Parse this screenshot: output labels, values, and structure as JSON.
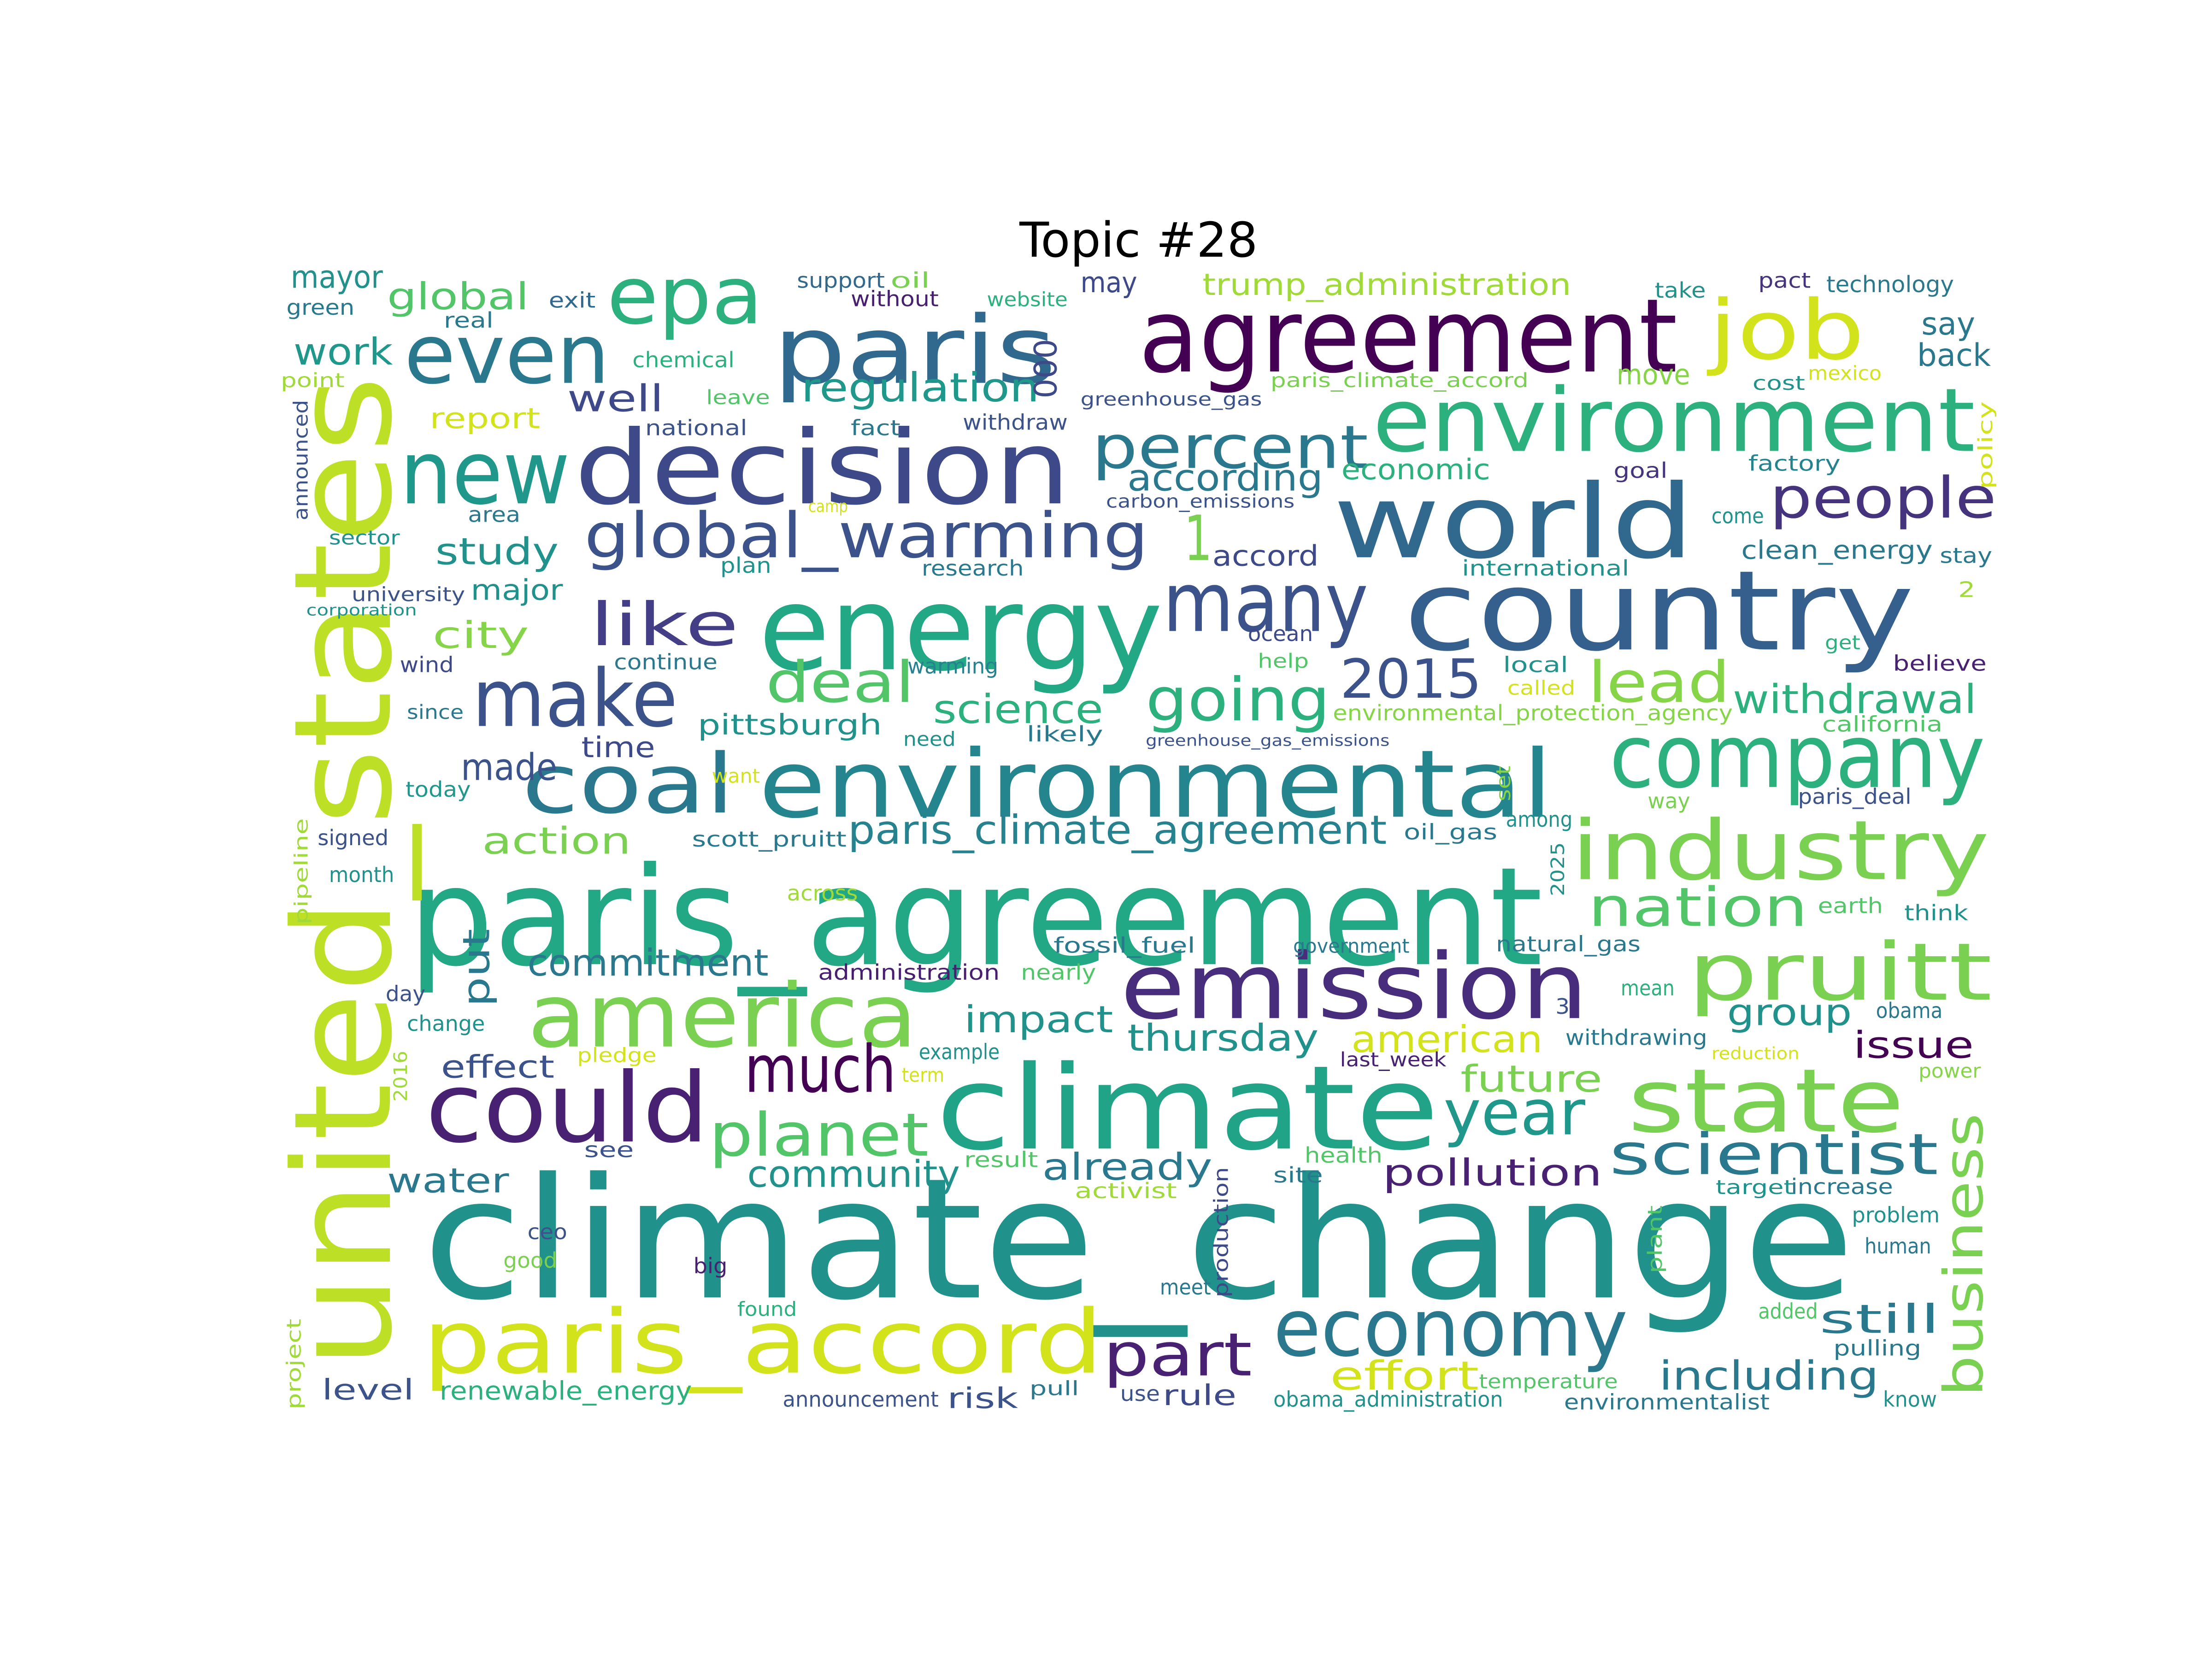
{
  "title": "Topic #28",
  "words": [
    {
      "text": "climate_change",
      "color": "#21918c"
    },
    {
      "text": "paris_agreement",
      "color": "#22a884"
    },
    {
      "text": "united_states",
      "color": "#bddf26"
    },
    {
      "text": "climate",
      "color": "#20a386"
    },
    {
      "text": "country",
      "color": "#355f8d"
    },
    {
      "text": "energy",
      "color": "#22a884"
    },
    {
      "text": "agreement",
      "color": "#440154"
    },
    {
      "text": "world",
      "color": "#31688e"
    },
    {
      "text": "environmental",
      "color": "#25858e"
    },
    {
      "text": "decision",
      "color": "#3e4989"
    },
    {
      "text": "paris",
      "color": "#31688e"
    },
    {
      "text": "emission",
      "color": "#472d7b"
    },
    {
      "text": "environment",
      "color": "#2cb17e"
    },
    {
      "text": "paris_accord",
      "color": "#d2e21b"
    },
    {
      "text": "could",
      "color": "#482173"
    },
    {
      "text": "america",
      "color": "#7ad151"
    },
    {
      "text": "state",
      "color": "#7ad151"
    },
    {
      "text": "company",
      "color": "#2cb17e"
    },
    {
      "text": "industry",
      "color": "#7ad151"
    },
    {
      "text": "economy",
      "color": "#2a788e"
    },
    {
      "text": "pruitt",
      "color": "#7ad151"
    },
    {
      "text": "job",
      "color": "#d2e21b"
    },
    {
      "text": "new",
      "color": "#1f988b"
    },
    {
      "text": "even",
      "color": "#2a788e"
    },
    {
      "text": "epa",
      "color": "#2cb17e"
    },
    {
      "text": "coal",
      "color": "#2a788e"
    },
    {
      "text": "make",
      "color": "#3b528b"
    },
    {
      "text": "many",
      "color": "#3b528b"
    },
    {
      "text": "global_warming",
      "color": "#3b528b"
    },
    {
      "text": "percent",
      "color": "#2a788e"
    },
    {
      "text": "people",
      "color": "#46337e"
    },
    {
      "text": "scientist",
      "color": "#2a788e"
    },
    {
      "text": "business",
      "color": "#7ad151"
    },
    {
      "text": "going",
      "color": "#2cb17e"
    },
    {
      "text": "deal",
      "color": "#52c569"
    },
    {
      "text": "like",
      "color": "#433e85"
    },
    {
      "text": "much",
      "color": "#440154"
    },
    {
      "text": "planet",
      "color": "#52c569"
    },
    {
      "text": "year",
      "color": "#1f988b"
    },
    {
      "text": "part",
      "color": "#482173"
    },
    {
      "text": "lead",
      "color": "#86d549"
    },
    {
      "text": "nation",
      "color": "#52c569"
    },
    {
      "text": "2015",
      "color": "#3b528b"
    },
    {
      "text": "paris_climate_agreement",
      "color": "#26828e"
    },
    {
      "text": "withdrawal",
      "color": "#2cb17e"
    },
    {
      "text": "regulation",
      "color": "#1f988b"
    },
    {
      "text": "still",
      "color": "#2a788e"
    },
    {
      "text": "including",
      "color": "#2a788e"
    },
    {
      "text": "effort",
      "color": "#d2e21b"
    },
    {
      "text": "science",
      "color": "#2cb17e"
    },
    {
      "text": "impact",
      "color": "#21918c"
    },
    {
      "text": "american",
      "color": "#d2e21b"
    },
    {
      "text": "future",
      "color": "#7ad151"
    },
    {
      "text": "pollution",
      "color": "#482173"
    },
    {
      "text": "already",
      "color": "#2a788e"
    },
    {
      "text": "community",
      "color": "#21918c"
    },
    {
      "text": "thursday",
      "color": "#21918c"
    },
    {
      "text": "group",
      "color": "#21918c"
    },
    {
      "text": "issue",
      "color": "#440154"
    },
    {
      "text": "commitment",
      "color": "#2a788e"
    },
    {
      "text": "action",
      "color": "#7ad151"
    },
    {
      "text": "according",
      "color": "#2a788e"
    },
    {
      "text": "global",
      "color": "#52c569"
    },
    {
      "text": "work",
      "color": "#1f988b"
    },
    {
      "text": "well",
      "color": "#3e4989"
    },
    {
      "text": "city",
      "color": "#86d549"
    },
    {
      "text": "study",
      "color": "#21918c"
    },
    {
      "text": "made",
      "color": "#3b528b"
    },
    {
      "text": "put",
      "color": "#2a788e"
    },
    {
      "text": "water",
      "color": "#2a788e"
    },
    {
      "text": "effect",
      "color": "#3b528b"
    },
    {
      "text": "pittsburgh",
      "color": "#21918c"
    },
    {
      "text": "economic",
      "color": "#2cb17e"
    },
    {
      "text": "1",
      "color": "#7ad151"
    },
    {
      "text": "000",
      "color": "#3e4989"
    },
    {
      "text": "trump_administration",
      "color": "#a0da39"
    },
    {
      "text": "mayor",
      "color": "#21918c"
    },
    {
      "text": "report",
      "color": "#d2e21b"
    },
    {
      "text": "move",
      "color": "#86d549"
    },
    {
      "text": "say",
      "color": "#2a788e"
    },
    {
      "text": "back",
      "color": "#2a788e"
    },
    {
      "text": "accord",
      "color": "#3e4989"
    },
    {
      "text": "clean_energy",
      "color": "#2a788e"
    },
    {
      "text": "major",
      "color": "#21918c"
    },
    {
      "text": "time",
      "color": "#3e4989"
    },
    {
      "text": "level",
      "color": "#3b528b"
    },
    {
      "text": "renewable_energy",
      "color": "#2cb17e"
    },
    {
      "text": "risk",
      "color": "#3b528b"
    },
    {
      "text": "rule",
      "color": "#3e4989"
    },
    {
      "text": "may",
      "color": "#3e4989"
    },
    {
      "text": "support",
      "color": "#31688e"
    },
    {
      "text": "oil",
      "color": "#7ad151"
    },
    {
      "text": "without",
      "color": "#481f70"
    },
    {
      "text": "website",
      "color": "#2cb17e"
    },
    {
      "text": "pact",
      "color": "#46337e"
    },
    {
      "text": "technology",
      "color": "#2a788e"
    },
    {
      "text": "take",
      "color": "#21918c"
    },
    {
      "text": "green",
      "color": "#2a788e"
    },
    {
      "text": "real",
      "color": "#2a788e"
    },
    {
      "text": "exit",
      "color": "#31688e"
    },
    {
      "text": "chemical",
      "color": "#2cb17e"
    },
    {
      "text": "point",
      "color": "#a0da39"
    },
    {
      "text": "leave",
      "color": "#52c569"
    },
    {
      "text": "greenhouse_gas",
      "color": "#3b528b"
    },
    {
      "text": "paris_climate_accord",
      "color": "#7ad151"
    },
    {
      "text": "cost",
      "color": "#21918c"
    },
    {
      "text": "mexico",
      "color": "#d2e21b"
    },
    {
      "text": "national",
      "color": "#3b528b"
    },
    {
      "text": "fact",
      "color": "#2a788e"
    },
    {
      "text": "withdraw",
      "color": "#3b528b"
    },
    {
      "text": "goal",
      "color": "#46337e"
    },
    {
      "text": "factory",
      "color": "#26828e"
    },
    {
      "text": "policy",
      "color": "#d2e21b"
    },
    {
      "text": "announced",
      "color": "#3b528b"
    },
    {
      "text": "area",
      "color": "#2a788e"
    },
    {
      "text": "camp",
      "color": "#d2e21b"
    },
    {
      "text": "carbon_emissions",
      "color": "#3b528b"
    },
    {
      "text": "come",
      "color": "#21918c"
    },
    {
      "text": "stay",
      "color": "#2a788e"
    },
    {
      "text": "sector",
      "color": "#21918c"
    },
    {
      "text": "plan",
      "color": "#21918c"
    },
    {
      "text": "research",
      "color": "#2a788e"
    },
    {
      "text": "international",
      "color": "#21918c"
    },
    {
      "text": "2",
      "color": "#a0da39"
    },
    {
      "text": "university",
      "color": "#3b528b"
    },
    {
      "text": "corporation",
      "color": "#21918c"
    },
    {
      "text": "ocean",
      "color": "#3e4989"
    },
    {
      "text": "help",
      "color": "#52c569"
    },
    {
      "text": "get",
      "color": "#2cb17e"
    },
    {
      "text": "believe",
      "color": "#482173"
    },
    {
      "text": "wind",
      "color": "#3e4989"
    },
    {
      "text": "continue",
      "color": "#2a788e"
    },
    {
      "text": "warming",
      "color": "#26828e"
    },
    {
      "text": "local",
      "color": "#21918c"
    },
    {
      "text": "called",
      "color": "#d2e21b"
    },
    {
      "text": "since",
      "color": "#2a788e"
    },
    {
      "text": "environmental_protection_agency",
      "color": "#86d549"
    },
    {
      "text": "california",
      "color": "#52c569"
    },
    {
      "text": "need",
      "color": "#21918c"
    },
    {
      "text": "likely",
      "color": "#2a788e"
    },
    {
      "text": "greenhouse_gas_emissions",
      "color": "#3b528b"
    },
    {
      "text": "today",
      "color": "#1f988b"
    },
    {
      "text": "want",
      "color": "#d2e21b"
    },
    {
      "text": "set",
      "color": "#86d549"
    },
    {
      "text": "among",
      "color": "#21918c"
    },
    {
      "text": "way",
      "color": "#7ad151"
    },
    {
      "text": "paris_deal",
      "color": "#3b528b"
    },
    {
      "text": "signed",
      "color": "#3b528b"
    },
    {
      "text": "scott_pruitt",
      "color": "#2a788e"
    },
    {
      "text": "oil_gas",
      "color": "#2a788e"
    },
    {
      "text": "pipeline",
      "color": "#a0da39"
    },
    {
      "text": "month",
      "color": "#21918c"
    },
    {
      "text": "across",
      "color": "#a0da39"
    },
    {
      "text": "2025",
      "color": "#21918c"
    },
    {
      "text": "earth",
      "color": "#52c569"
    },
    {
      "text": "think",
      "color": "#21918c"
    },
    {
      "text": "fossil_fuel",
      "color": "#2a788e"
    },
    {
      "text": "government",
      "color": "#2a788e"
    },
    {
      "text": "natural_gas",
      "color": "#2a788e"
    },
    {
      "text": "administration",
      "color": "#481f70"
    },
    {
      "text": "nearly",
      "color": "#52c569"
    },
    {
      "text": "mean",
      "color": "#2cb17e"
    },
    {
      "text": "day",
      "color": "#3b528b"
    },
    {
      "text": "3",
      "color": "#3b528b"
    },
    {
      "text": "obama",
      "color": "#2a788e"
    },
    {
      "text": "change",
      "color": "#21918c"
    },
    {
      "text": "withdrawing",
      "color": "#2a788e"
    },
    {
      "text": "2016",
      "color": "#a0da39"
    },
    {
      "text": "pledge",
      "color": "#d2e21b"
    },
    {
      "text": "example",
      "color": "#21918c"
    },
    {
      "text": "last_week",
      "color": "#482173"
    },
    {
      "text": "reduction",
      "color": "#d2e21b"
    },
    {
      "text": "power",
      "color": "#86d549"
    },
    {
      "text": "term",
      "color": "#d2e21b"
    },
    {
      "text": "result",
      "color": "#52c569"
    },
    {
      "text": "health",
      "color": "#52c569"
    },
    {
      "text": "see",
      "color": "#3b528b"
    },
    {
      "text": "site",
      "color": "#2a788e"
    },
    {
      "text": "activist",
      "color": "#a0da39"
    },
    {
      "text": "target",
      "color": "#21918c"
    },
    {
      "text": "increase",
      "color": "#2a788e"
    },
    {
      "text": "problem",
      "color": "#21918c"
    },
    {
      "text": "ceo",
      "color": "#3b528b"
    },
    {
      "text": "production",
      "color": "#3e4989"
    },
    {
      "text": "plant",
      "color": "#52c569"
    },
    {
      "text": "human",
      "color": "#2a788e"
    },
    {
      "text": "good",
      "color": "#7ad151"
    },
    {
      "text": "big",
      "color": "#482173"
    },
    {
      "text": "meet",
      "color": "#2a788e"
    },
    {
      "text": "found",
      "color": "#2cb17e"
    },
    {
      "text": "added",
      "color": "#52c569"
    },
    {
      "text": "pulling",
      "color": "#2a788e"
    },
    {
      "text": "project",
      "color": "#a0da39"
    },
    {
      "text": "temperature",
      "color": "#52c569"
    },
    {
      "text": "pull",
      "color": "#2a788e"
    },
    {
      "text": "use",
      "color": "#3b528b"
    },
    {
      "text": "announcement",
      "color": "#3b528b"
    },
    {
      "text": "obama_administration",
      "color": "#21918c"
    },
    {
      "text": "environmentalist",
      "color": "#2a788e"
    },
    {
      "text": "know",
      "color": "#21918c"
    }
  ]
}
